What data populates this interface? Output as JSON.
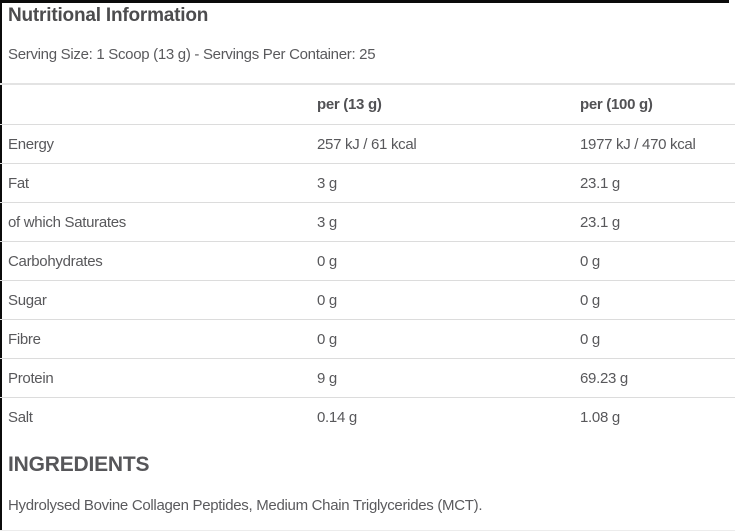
{
  "page": {
    "title": "Nutritional Information",
    "serving_info": "Serving Size: 1 Scoop (13 g) - Servings Per Container: 25"
  },
  "table": {
    "columns": [
      "",
      "per (13 g)",
      "per (100 g)"
    ],
    "rows": [
      {
        "label": "Energy",
        "per_serving": "257 kJ / 61 kcal",
        "per_100g": "1977 kJ / 470 kcal"
      },
      {
        "label": "Fat",
        "per_serving": "3 g",
        "per_100g": "23.1 g"
      },
      {
        "label": "of which Saturates",
        "per_serving": "3 g",
        "per_100g": "23.1 g"
      },
      {
        "label": "Carbohydrates",
        "per_serving": "0 g",
        "per_100g": "0 g"
      },
      {
        "label": "Sugar",
        "per_serving": "0 g",
        "per_100g": "0 g"
      },
      {
        "label": "Fibre",
        "per_serving": "0 g",
        "per_100g": "0 g"
      },
      {
        "label": "Protein",
        "per_serving": "9 g",
        "per_100g": "69.23 g"
      },
      {
        "label": "Salt",
        "per_serving": "0.14 g",
        "per_100g": "1.08 g"
      }
    ]
  },
  "ingredients": {
    "heading": "INGREDIENTS",
    "text": "Hydrolysed Bovine Collagen Peptides, Medium Chain Triglycerides (MCT)."
  },
  "colors": {
    "text": "#58585b",
    "title": "#4c4c4e",
    "divider": "#dcdcdc",
    "edge_border": "#0b0b0b",
    "background": "#ffffff"
  }
}
